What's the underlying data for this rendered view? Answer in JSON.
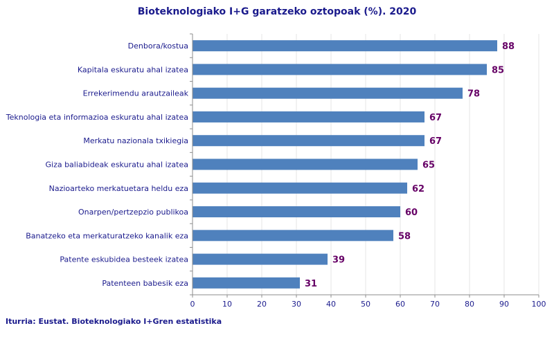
{
  "chart_data": {
    "type": "bar",
    "orientation": "horizontal",
    "title": "Bioteknologiako I+G garatzeko oztopoak (%). 2020",
    "categories": [
      "Denbora/kostua",
      "Kapitala eskuratu ahal izatea",
      "Errekerimendu arautzaileak",
      "Teknologia eta informazioa eskuratu ahal izatea",
      "Merkatu nazionala txikiegia",
      "Giza baliabideak eskuratu ahal izatea",
      "Nazioarteko merkatuetara heldu eza",
      "Onarpen/pertzepzio publikoa",
      "Banatzeko eta merkaturatzeko kanalik eza",
      "Patente eskubidea besteek izatea",
      "Patenteen babesik eza"
    ],
    "values": [
      88,
      85,
      78,
      67,
      67,
      65,
      62,
      60,
      58,
      39,
      31
    ],
    "xlim": [
      0,
      100
    ],
    "xticks": [
      0,
      10,
      20,
      30,
      40,
      50,
      60,
      70,
      80,
      90,
      100
    ],
    "grid": true,
    "legend": "none",
    "bar_color": "#4f81bd",
    "label_color": "#660066",
    "text_color": "#1a1a8c"
  },
  "source": "Iturria: Eustat. Bioteknologiako I+Gren estatistika"
}
